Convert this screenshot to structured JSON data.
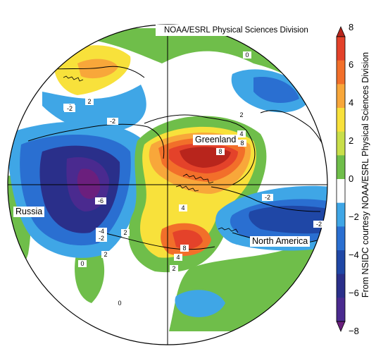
{
  "header": {
    "source": "NOAA/ESRL Physical Sciences Division"
  },
  "credit": {
    "vertical": "From NSIDC courtesy NOAA/ESRL Physical Sciences Division"
  },
  "regions": [
    {
      "id": "greenland",
      "label": "Greenland"
    },
    {
      "id": "russia",
      "label": "Russia"
    },
    {
      "id": "north-america",
      "label": "North America"
    }
  ],
  "colorbar": {
    "ticks": [
      "8",
      "6",
      "4",
      "2",
      "0",
      "−2",
      "−4",
      "−6",
      "−8"
    ],
    "bins": [
      {
        "range": "6 to 8",
        "color": "#b8251c"
      },
      {
        "range": "5 to 6",
        "color": "#e4422a"
      },
      {
        "range": "4 to 5",
        "color": "#f26f2a"
      },
      {
        "range": "3 to 4",
        "color": "#f8a73a"
      },
      {
        "range": "2 to 3",
        "color": "#f8e13b"
      },
      {
        "range": "1 to 2",
        "color": "#c9df4a"
      },
      {
        "range": "0 to 1",
        "color": "#6fbe4a"
      },
      {
        "range": "-1 to 1",
        "color": "#ffffff"
      },
      {
        "range": "-2 to -1",
        "color": "#3fa6e6"
      },
      {
        "range": "-3 to -2",
        "color": "#2a6fd1"
      },
      {
        "range": "-4 to -3",
        "color": "#1f47a6"
      },
      {
        "range": "-5 to -4",
        "color": "#2a2f8a"
      },
      {
        "range": "-6 to -5",
        "color": "#4a2a8f"
      },
      {
        "range": "-8 to -6",
        "color": "#6b1f7d"
      }
    ]
  },
  "contour_labels": [
    "0",
    "2",
    "-2",
    "-2",
    "2",
    "4",
    "8",
    "8",
    "-6",
    "4",
    "-4",
    "-2",
    "2",
    "8",
    "4",
    "2",
    "-2",
    "-2",
    "0",
    "0",
    "-2",
    "2"
  ]
}
